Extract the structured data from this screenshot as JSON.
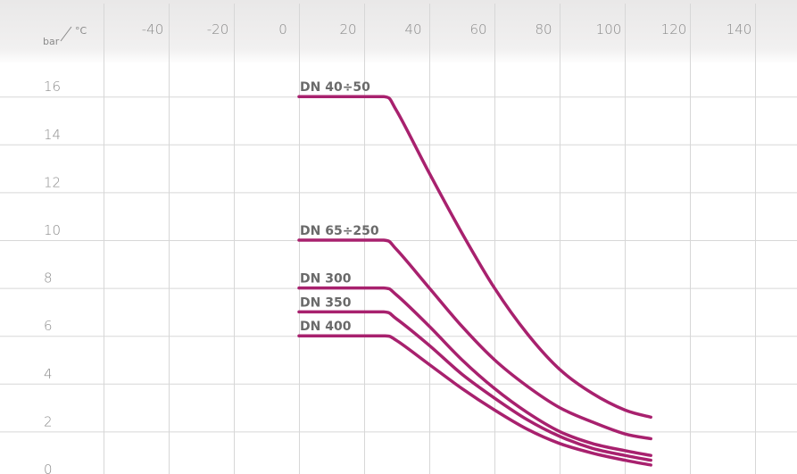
{
  "chart_data": {
    "type": "line",
    "corner_label": {
      "y_unit": "bar",
      "x_unit": "°C"
    },
    "x_ticks": [
      "-40",
      "-20",
      "0",
      "20",
      "40",
      "60",
      "80",
      "100",
      "120",
      "140"
    ],
    "y_ticks": [
      "16",
      "14",
      "12",
      "10",
      "8",
      "6",
      "4",
      "2",
      "0"
    ],
    "xlim": [
      -60,
      160
    ],
    "ylim": [
      0,
      18
    ],
    "grid": true,
    "colors": {
      "series": "#a8216e",
      "grid": "#d7d7d7",
      "header": "#efeeee",
      "text": "#8a8a8a"
    },
    "series": [
      {
        "name": "DN 40÷50",
        "x": [
          0,
          26,
          30,
          40,
          50,
          60,
          70,
          80,
          90,
          100,
          108
        ],
        "y": [
          16,
          16,
          15.4,
          12.8,
          10.3,
          8.0,
          6.1,
          4.6,
          3.6,
          2.9,
          2.6
        ]
      },
      {
        "name": "DN 65÷250",
        "x": [
          0,
          26,
          30,
          40,
          50,
          60,
          70,
          80,
          90,
          100,
          108
        ],
        "y": [
          10,
          10,
          9.6,
          8.0,
          6.4,
          5.0,
          3.9,
          3.0,
          2.4,
          1.9,
          1.7
        ]
      },
      {
        "name": "DN 300",
        "x": [
          0,
          26,
          30,
          40,
          50,
          60,
          70,
          80,
          90,
          100,
          108
        ],
        "y": [
          8,
          8,
          7.7,
          6.4,
          5.0,
          3.8,
          2.8,
          2.0,
          1.5,
          1.2,
          1.0
        ]
      },
      {
        "name": "DN 350",
        "x": [
          0,
          26,
          30,
          40,
          50,
          60,
          70,
          80,
          90,
          100,
          108
        ],
        "y": [
          7,
          7,
          6.7,
          5.6,
          4.4,
          3.4,
          2.5,
          1.8,
          1.3,
          1.0,
          0.8
        ]
      },
      {
        "name": "DN 400",
        "x": [
          0,
          26,
          30,
          40,
          50,
          60,
          70,
          80,
          90,
          100,
          108
        ],
        "y": [
          6,
          6,
          5.8,
          4.8,
          3.8,
          2.9,
          2.1,
          1.5,
          1.1,
          0.8,
          0.6
        ]
      }
    ]
  }
}
